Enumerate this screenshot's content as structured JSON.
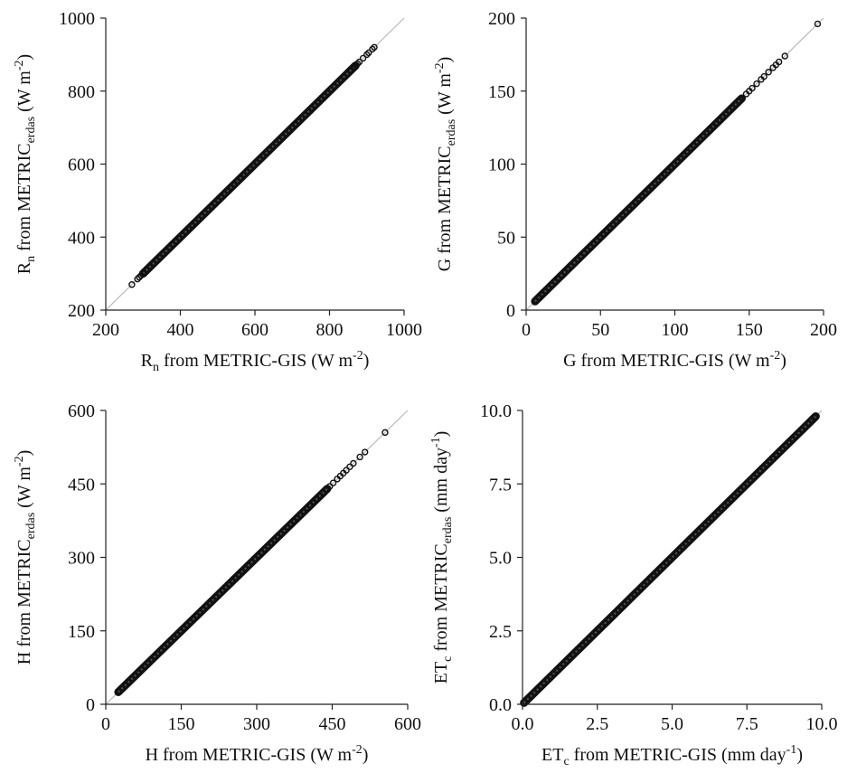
{
  "chart_data": [
    {
      "type": "scatter",
      "xlabel": {
        "main": "R",
        "sub": "n",
        "rest": " from METRIC-GIS  (W m",
        "sup": "-2",
        "end": ")"
      },
      "ylabel": {
        "main": "R",
        "sub": "n",
        "rest": " from METRIC",
        "sub2": "erdas",
        "rest2": " (W m",
        "sup": "-2",
        "end": ")"
      },
      "xlim": [
        200,
        1000
      ],
      "ylim": [
        200,
        1000
      ],
      "xticks": [
        "200",
        "400",
        "600",
        "800",
        "1000"
      ],
      "yticks": [
        "200",
        "400",
        "600",
        "800",
        "1000"
      ],
      "reference_line": "1:1",
      "dense_range": [
        300,
        870
      ],
      "points": [
        [
          270,
          270
        ],
        [
          285,
          285
        ],
        [
          290,
          290
        ],
        [
          295,
          295
        ],
        [
          300,
          300
        ],
        [
          870,
          870
        ],
        [
          875,
          875
        ],
        [
          880,
          880
        ],
        [
          890,
          890
        ],
        [
          900,
          900
        ],
        [
          905,
          905
        ],
        [
          915,
          915
        ],
        [
          920,
          920
        ]
      ]
    },
    {
      "type": "scatter",
      "xlabel": {
        "main": "G from METRIC-GIS  (W m",
        "sup": "-2",
        "end": ")"
      },
      "ylabel": {
        "main": "G from METRIC",
        "sub": "erdas",
        "rest": " (W m",
        "sup": "-2",
        "end": ")"
      },
      "xlim": [
        0,
        200
      ],
      "ylim": [
        0,
        200
      ],
      "xticks": [
        "0",
        "50",
        "100",
        "150",
        "200"
      ],
      "yticks": [
        "0",
        "50",
        "100",
        "150",
        "200"
      ],
      "reference_line": "1:1",
      "dense_range": [
        6,
        145
      ],
      "points": [
        [
          148,
          148
        ],
        [
          150,
          150
        ],
        [
          152,
          152
        ],
        [
          155,
          155
        ],
        [
          158,
          158
        ],
        [
          160,
          160
        ],
        [
          163,
          163
        ],
        [
          166,
          166
        ],
        [
          168,
          168
        ],
        [
          170,
          170
        ],
        [
          174,
          174
        ],
        [
          196,
          196
        ]
      ]
    },
    {
      "type": "scatter",
      "xlabel": {
        "main": "H from METRIC-GIS  (W m",
        "sup": "-2",
        "end": ")"
      },
      "ylabel": {
        "main": "H from METRIC",
        "sub": "erdas",
        "rest": " (W m",
        "sup": "-2",
        "end": ")"
      },
      "xlim": [
        0,
        600
      ],
      "ylim": [
        0,
        600
      ],
      "xticks": [
        "0",
        "150",
        "300",
        "450",
        "600"
      ],
      "yticks": [
        "0",
        "150",
        "300",
        "450",
        "600"
      ],
      "reference_line": "1:1",
      "dense_range": [
        25,
        440
      ],
      "points": [
        [
          445,
          445
        ],
        [
          452,
          452
        ],
        [
          460,
          460
        ],
        [
          466,
          466
        ],
        [
          472,
          472
        ],
        [
          478,
          478
        ],
        [
          485,
          485
        ],
        [
          492,
          492
        ],
        [
          505,
          505
        ],
        [
          515,
          515
        ],
        [
          555,
          555
        ]
      ]
    },
    {
      "type": "scatter",
      "xlabel": {
        "main": "ET",
        "sub": "c",
        "rest": " from METRIC-GIS  (mm day",
        "sup": "-1",
        "end": ")"
      },
      "ylabel": {
        "main": "ET",
        "sub": "c",
        "rest": " from METRIC",
        "sub2": "erdas",
        "rest2": " (mm day",
        "sup": "-1",
        "end": ")"
      },
      "xlim": [
        0,
        10
      ],
      "ylim": [
        0,
        10
      ],
      "xticks": [
        "0.0",
        "2.5",
        "5.0",
        "7.5",
        "10.0"
      ],
      "yticks": [
        "0.0",
        "2.5",
        "5.0",
        "7.5",
        "10.0"
      ],
      "reference_line": "1:1",
      "dense_range": [
        0.05,
        9.8
      ],
      "points": [
        [
          9.75,
          9.75
        ],
        [
          9.8,
          9.8
        ]
      ]
    }
  ]
}
